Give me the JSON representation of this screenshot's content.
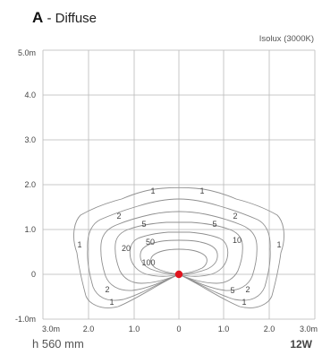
{
  "header": {
    "letter": "A",
    "name": " - Diffuse",
    "subtitle": "Isolux (3000K)"
  },
  "footer": {
    "mounting_height": "h 560 mm",
    "wattage": "12W"
  },
  "diagram": {
    "y_tick_labels": [
      "5.0m",
      "4.0",
      "3.0",
      "2.0",
      "1.0",
      "0",
      "-1.0m"
    ],
    "x_tick_labels": [
      "3.0m",
      "2.0",
      "1.0",
      "0",
      "1.0",
      "2.0",
      "3.0m"
    ],
    "contour_labels": [
      "1",
      "1",
      "2",
      "2",
      "5",
      "5",
      "10",
      "1",
      "1",
      "20",
      "50",
      "100",
      "5",
      "2",
      "2",
      "1",
      "1"
    ],
    "colors": {
      "grid": "#b9b9b9",
      "curve": "#8f8f8f",
      "source_point": "#e0141e"
    }
  }
}
